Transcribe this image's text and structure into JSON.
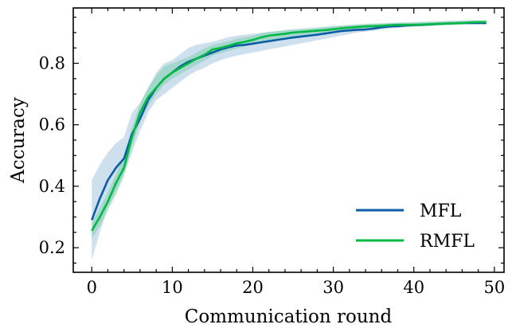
{
  "chart_data": {
    "type": "line",
    "title": "",
    "xlabel": "Communication round",
    "ylabel": "Accuracy",
    "xlim": [
      -2.3,
      51.2
    ],
    "ylim": [
      0.12,
      0.98
    ],
    "xticks": [
      0,
      10,
      20,
      30,
      40,
      50
    ],
    "yticks": [
      0.2,
      0.4,
      0.6,
      0.8
    ],
    "xtick_labels": [
      "0",
      "10",
      "20",
      "30",
      "40",
      "50"
    ],
    "ytick_labels": [
      "0.2",
      "0.4",
      "0.6",
      "0.8"
    ],
    "grid": false,
    "legend_position": "lower-right",
    "x": [
      0,
      1,
      2,
      3,
      4,
      5,
      6,
      7,
      8,
      9,
      10,
      11,
      12,
      13,
      14,
      15,
      16,
      17,
      18,
      19,
      20,
      21,
      22,
      23,
      24,
      25,
      26,
      27,
      28,
      29,
      30,
      31,
      32,
      33,
      34,
      35,
      36,
      37,
      38,
      39,
      40,
      41,
      42,
      43,
      44,
      45,
      46,
      47,
      48,
      49
    ],
    "series": [
      {
        "name": "MFL",
        "color": "#0c5da5",
        "band_color": "#0c5da5",
        "values": [
          0.29,
          0.36,
          0.42,
          0.46,
          0.49,
          0.57,
          0.62,
          0.68,
          0.72,
          0.75,
          0.77,
          0.79,
          0.805,
          0.815,
          0.825,
          0.835,
          0.845,
          0.852,
          0.858,
          0.86,
          0.864,
          0.868,
          0.872,
          0.876,
          0.88,
          0.884,
          0.887,
          0.89,
          0.893,
          0.897,
          0.901,
          0.905,
          0.907,
          0.909,
          0.91,
          0.913,
          0.917,
          0.92,
          0.921,
          0.923,
          0.924,
          0.925,
          0.926,
          0.928,
          0.929,
          0.93,
          0.931,
          0.931,
          0.931,
          0.931
        ],
        "lower": [
          0.16,
          0.25,
          0.33,
          0.38,
          0.44,
          0.51,
          0.58,
          0.64,
          0.68,
          0.7,
          0.72,
          0.74,
          0.76,
          0.775,
          0.785,
          0.8,
          0.81,
          0.818,
          0.825,
          0.83,
          0.835,
          0.84,
          0.845,
          0.85,
          0.855,
          0.86,
          0.865,
          0.87,
          0.875,
          0.88,
          0.885,
          0.89,
          0.895,
          0.9,
          0.903,
          0.906,
          0.91,
          0.913,
          0.915,
          0.917,
          0.919,
          0.921,
          0.922,
          0.924,
          0.925,
          0.926,
          0.927,
          0.927,
          0.927,
          0.927
        ],
        "upper": [
          0.42,
          0.47,
          0.51,
          0.54,
          0.56,
          0.64,
          0.67,
          0.72,
          0.77,
          0.8,
          0.81,
          0.83,
          0.85,
          0.86,
          0.865,
          0.87,
          0.878,
          0.885,
          0.89,
          0.893,
          0.896,
          0.899,
          0.902,
          0.905,
          0.907,
          0.909,
          0.911,
          0.913,
          0.915,
          0.918,
          0.92,
          0.922,
          0.924,
          0.926,
          0.927,
          0.928,
          0.929,
          0.93,
          0.931,
          0.932,
          0.933,
          0.934,
          0.935,
          0.936,
          0.937,
          0.938,
          0.938,
          0.938,
          0.938,
          0.938
        ]
      },
      {
        "name": "RMFL",
        "color": "#00b945",
        "band_color": "#00b945",
        "values": [
          0.255,
          0.3,
          0.35,
          0.41,
          0.46,
          0.56,
          0.64,
          0.69,
          0.72,
          0.75,
          0.77,
          0.785,
          0.8,
          0.815,
          0.828,
          0.845,
          0.85,
          0.857,
          0.865,
          0.87,
          0.876,
          0.884,
          0.89,
          0.893,
          0.896,
          0.9,
          0.902,
          0.904,
          0.906,
          0.908,
          0.911,
          0.914,
          0.916,
          0.918,
          0.92,
          0.921,
          0.922,
          0.924,
          0.925,
          0.925,
          0.925,
          0.926,
          0.927,
          0.928,
          0.929,
          0.93,
          0.931,
          0.933,
          0.934,
          0.934
        ],
        "lower": [
          0.23,
          0.27,
          0.32,
          0.37,
          0.43,
          0.53,
          0.61,
          0.66,
          0.7,
          0.73,
          0.75,
          0.765,
          0.78,
          0.795,
          0.808,
          0.825,
          0.833,
          0.84,
          0.848,
          0.854,
          0.86,
          0.868,
          0.875,
          0.879,
          0.883,
          0.887,
          0.89,
          0.893,
          0.896,
          0.899,
          0.902,
          0.905,
          0.907,
          0.909,
          0.911,
          0.913,
          0.915,
          0.917,
          0.918,
          0.919,
          0.92,
          0.921,
          0.922,
          0.923,
          0.924,
          0.925,
          0.926,
          0.928,
          0.929,
          0.929
        ],
        "upper": [
          0.28,
          0.33,
          0.38,
          0.44,
          0.5,
          0.59,
          0.67,
          0.72,
          0.76,
          0.79,
          0.8,
          0.81,
          0.82,
          0.835,
          0.848,
          0.86,
          0.866,
          0.872,
          0.88,
          0.885,
          0.89,
          0.897,
          0.902,
          0.905,
          0.908,
          0.911,
          0.913,
          0.915,
          0.917,
          0.919,
          0.921,
          0.923,
          0.925,
          0.927,
          0.929,
          0.93,
          0.931,
          0.932,
          0.933,
          0.933,
          0.934,
          0.935,
          0.936,
          0.937,
          0.938,
          0.939,
          0.94,
          0.941,
          0.941,
          0.941
        ]
      }
    ]
  }
}
